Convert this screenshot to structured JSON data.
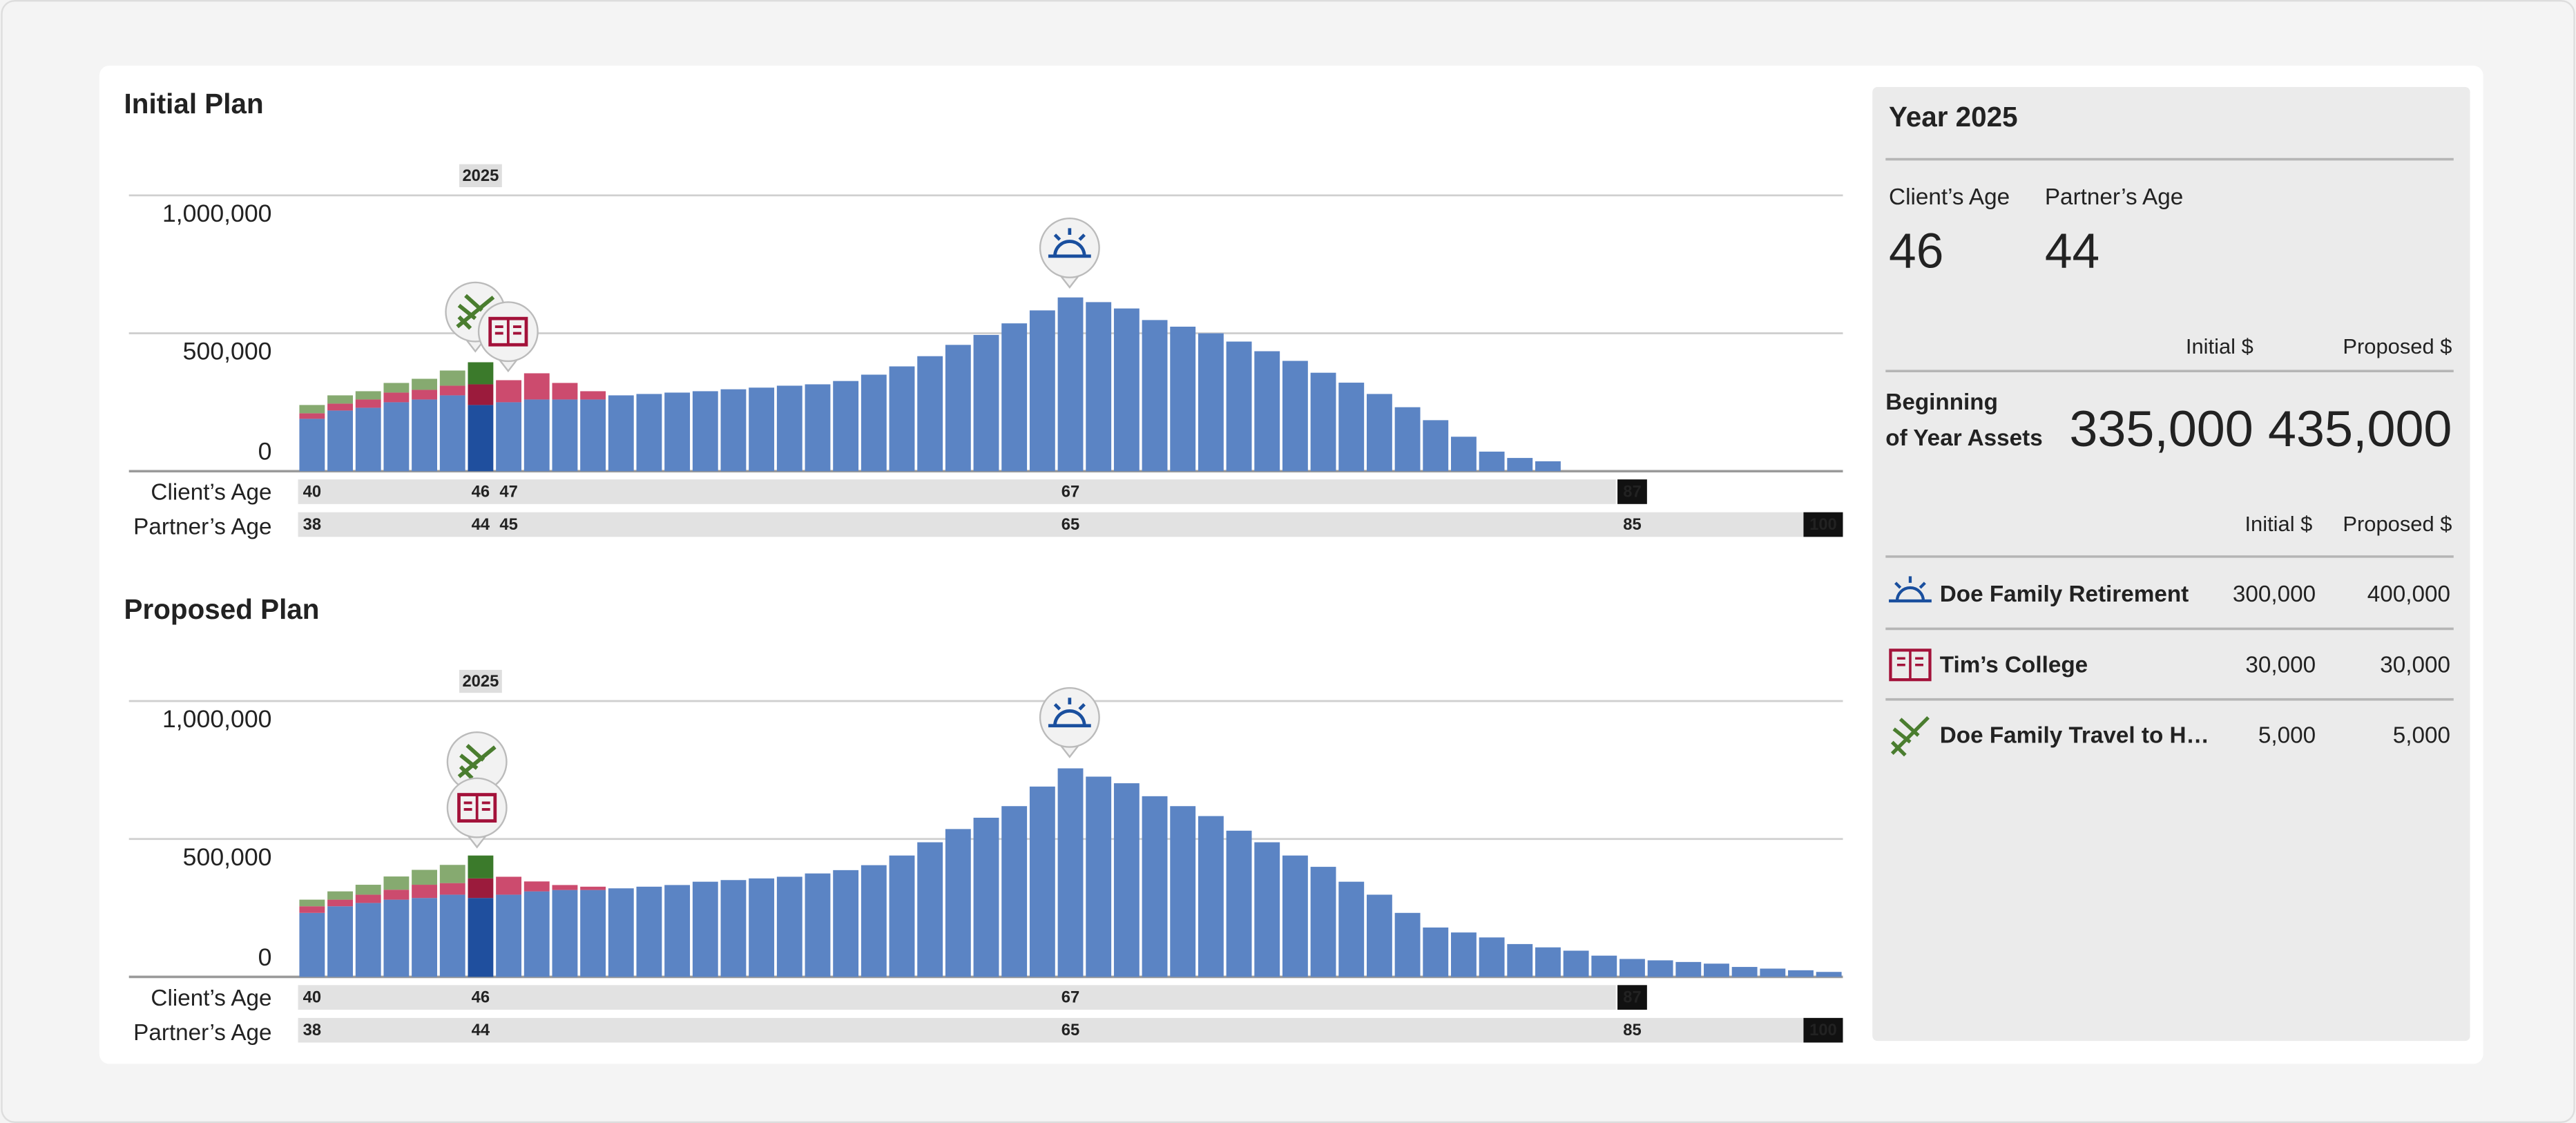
{
  "chart_data": [
    {
      "type": "bar",
      "stacked": true,
      "title": "Initial Plan",
      "x": [
        40,
        41,
        42,
        43,
        44,
        45,
        46,
        47,
        48,
        49,
        50,
        51,
        52,
        53,
        54,
        55,
        56,
        57,
        58,
        59,
        60,
        61,
        62,
        63,
        64,
        65,
        66,
        67,
        68,
        69,
        70,
        71,
        72,
        73,
        74,
        75,
        76,
        77,
        78,
        79,
        80,
        81,
        82,
        83,
        84,
        85,
        86,
        87,
        88,
        89,
        90,
        91,
        92,
        93,
        94
      ],
      "xlim": [
        39.5,
        94.5
      ],
      "xticks": [
        40,
        46,
        47,
        67
      ],
      "x_marked_tick": 87,
      "x_label": "Client’s Age",
      "x2lim": [
        37.5,
        92.5
      ],
      "x2ticks": [
        38,
        44,
        45,
        65,
        85
      ],
      "x2_end_label": 100,
      "x2_label": "Partner’s Age",
      "ylim": [
        0,
        1000000
      ],
      "yticks": [
        0,
        {
          "value": 500000,
          "label": "500,000"
        },
        {
          "value": 1000000,
          "label": "1,000,000"
        }
      ],
      "grid": true,
      "highlight": {
        "x": 46,
        "label": "2025"
      },
      "series": [
        {
          "color": "#5b84c4",
          "highlight_color": "#1f4f9e",
          "values": [
            190000,
            220000,
            230000,
            250000,
            260000,
            275000,
            240000,
            250000,
            260000,
            260000,
            260000,
            275000,
            280000,
            285000,
            290000,
            297000,
            303000,
            310000,
            315000,
            327000,
            350000,
            380000,
            417000,
            458000,
            494000,
            536000,
            583000,
            630000,
            613000,
            590000,
            548000,
            524000,
            500000,
            470000,
            435000,
            400000,
            357000,
            321000,
            280000,
            232000,
            185000,
            125000,
            71000,
            48000,
            36000,
            0,
            0,
            0,
            0,
            0,
            0,
            0,
            0,
            0,
            0
          ]
        },
        {
          "color": "#cc4b6e",
          "highlight_color": "#9b1b3c",
          "values": [
            20000,
            25000,
            30000,
            35000,
            35000,
            35000,
            75000,
            80000,
            95000,
            60000,
            30000,
            0,
            0,
            0,
            0,
            0,
            0,
            0,
            0,
            0,
            0,
            0,
            0,
            0,
            0,
            0,
            0,
            0,
            0,
            0,
            0,
            0,
            0,
            0,
            0,
            0,
            0,
            0,
            0,
            0,
            0,
            0,
            0,
            0,
            0,
            0,
            0,
            0,
            0,
            0,
            0,
            0,
            0,
            0,
            0
          ]
        },
        {
          "color": "#86aa70",
          "highlight_color": "#3b7a2b",
          "values": [
            30000,
            30000,
            30000,
            35000,
            40000,
            55000,
            80000,
            0,
            0,
            0,
            0,
            0,
            0,
            0,
            0,
            0,
            0,
            0,
            0,
            0,
            0,
            0,
            0,
            0,
            0,
            0,
            0,
            0,
            0,
            0,
            0,
            0,
            0,
            0,
            0,
            0,
            0,
            0,
            0,
            0,
            0,
            0,
            0,
            0,
            0,
            0,
            0,
            0,
            0,
            0,
            0,
            0,
            0,
            0,
            0
          ]
        }
      ]
    },
    {
      "type": "bar",
      "stacked": true,
      "title": "Proposed Plan",
      "x": [
        40,
        41,
        42,
        43,
        44,
        45,
        46,
        47,
        48,
        49,
        50,
        51,
        52,
        53,
        54,
        55,
        56,
        57,
        58,
        59,
        60,
        61,
        62,
        63,
        64,
        65,
        66,
        67,
        68,
        69,
        70,
        71,
        72,
        73,
        74,
        75,
        76,
        77,
        78,
        79,
        80,
        81,
        82,
        83,
        84,
        85,
        86,
        87,
        88,
        89,
        90,
        91,
        92,
        93,
        94
      ],
      "xlim": [
        39.5,
        94.5
      ],
      "xticks": [
        40,
        46,
        67
      ],
      "x_marked_tick": 87,
      "x_label": "Client’s Age",
      "x2lim": [
        37.5,
        92.5
      ],
      "x2ticks": [
        38,
        44,
        65,
        85
      ],
      "x2_end_label": 100,
      "x2_label": "Partner’s Age",
      "ylim": [
        0,
        1000000
      ],
      "yticks": [
        0,
        {
          "value": 500000,
          "label": "500,000"
        },
        {
          "value": 1000000,
          "label": "1,000,000"
        }
      ],
      "grid": true,
      "highlight": {
        "x": 46,
        "label": "2025"
      },
      "series": [
        {
          "color": "#5b84c4",
          "highlight_color": "#1f4f9e",
          "values": [
            232000,
            256000,
            268000,
            280000,
            286000,
            298000,
            286000,
            298000,
            310000,
            315000,
            315000,
            321000,
            327000,
            333000,
            345000,
            351000,
            357000,
            363000,
            375000,
            387000,
            405000,
            440000,
            488000,
            536000,
            577000,
            619000,
            690000,
            756000,
            726000,
            702000,
            655000,
            619000,
            583000,
            530000,
            488000,
            440000,
            399000,
            345000,
            298000,
            232000,
            179000,
            161000,
            143000,
            119000,
            107000,
            95000,
            77000,
            65000,
            60000,
            54000,
            48000,
            36000,
            30000,
            24000,
            18000
          ]
        },
        {
          "color": "#cc4b6e",
          "highlight_color": "#9b1b3c",
          "values": [
            24000,
            24000,
            30000,
            36000,
            48000,
            42000,
            71000,
            65000,
            36000,
            18000,
            12000,
            0,
            0,
            0,
            0,
            0,
            0,
            0,
            0,
            0,
            0,
            0,
            0,
            0,
            0,
            0,
            0,
            0,
            0,
            0,
            0,
            0,
            0,
            0,
            0,
            0,
            0,
            0,
            0,
            0,
            0,
            0,
            0,
            0,
            0,
            0,
            0,
            0,
            0,
            0,
            0,
            0,
            0,
            0,
            0
          ]
        },
        {
          "color": "#86aa70",
          "highlight_color": "#3b7a2b",
          "values": [
            24000,
            30000,
            36000,
            48000,
            54000,
            66000,
            83000,
            0,
            0,
            0,
            0,
            0,
            0,
            0,
            0,
            0,
            0,
            0,
            0,
            0,
            0,
            0,
            0,
            0,
            0,
            0,
            0,
            0,
            0,
            0,
            0,
            0,
            0,
            0,
            0,
            0,
            0,
            0,
            0,
            0,
            0,
            0,
            0,
            0,
            0,
            0,
            0,
            0,
            0,
            0,
            0,
            0,
            0,
            0,
            0
          ]
        }
      ]
    }
  ],
  "panel": {
    "title": "Year 2025",
    "ages": [
      {
        "label": "Client’s Age",
        "value": "46"
      },
      {
        "label": "Partner’s Age",
        "value": "44"
      }
    ],
    "assets": {
      "headers": [
        "Initial $",
        "Proposed $"
      ],
      "label_lines": [
        "Beginning",
        "of Year Assets"
      ],
      "values": [
        "335,000",
        "435,000"
      ]
    },
    "goals": {
      "headers": [
        "Initial $",
        "Proposed $"
      ],
      "rows": [
        {
          "name": "Doe Family Retirement",
          "color": "#1a4f9e",
          "values": [
            "300,000",
            "400,000"
          ]
        },
        {
          "name": "Tim’s College",
          "color": "#a3123a",
          "values": [
            "30,000",
            "30,000"
          ]
        },
        {
          "name": "Doe Family Travel to H…",
          "color": "#4a7d2f",
          "values": [
            "5,000",
            "5,000"
          ]
        }
      ]
    }
  }
}
